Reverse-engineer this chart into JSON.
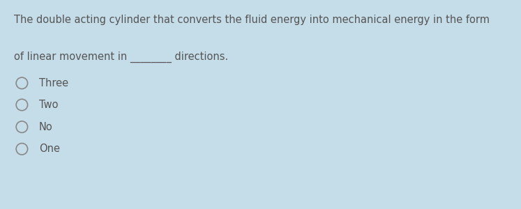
{
  "question_line1": "The double acting cylinder that converts the fluid energy into mechanical energy in the form",
  "question_line2": "of linear movement in ________ directions.",
  "options": [
    "Three",
    "Two",
    "No",
    "One"
  ],
  "bg_color_card": "#daeaf3",
  "bg_color_bottom_strip": "#c5dce9",
  "bg_color_outer": "#b8cdd8",
  "text_color": "#555555",
  "circle_color": "#888888",
  "font_size_question": 10.5,
  "font_size_option": 10.5,
  "fig_width": 7.47,
  "fig_height": 3.0,
  "dpi": 100
}
